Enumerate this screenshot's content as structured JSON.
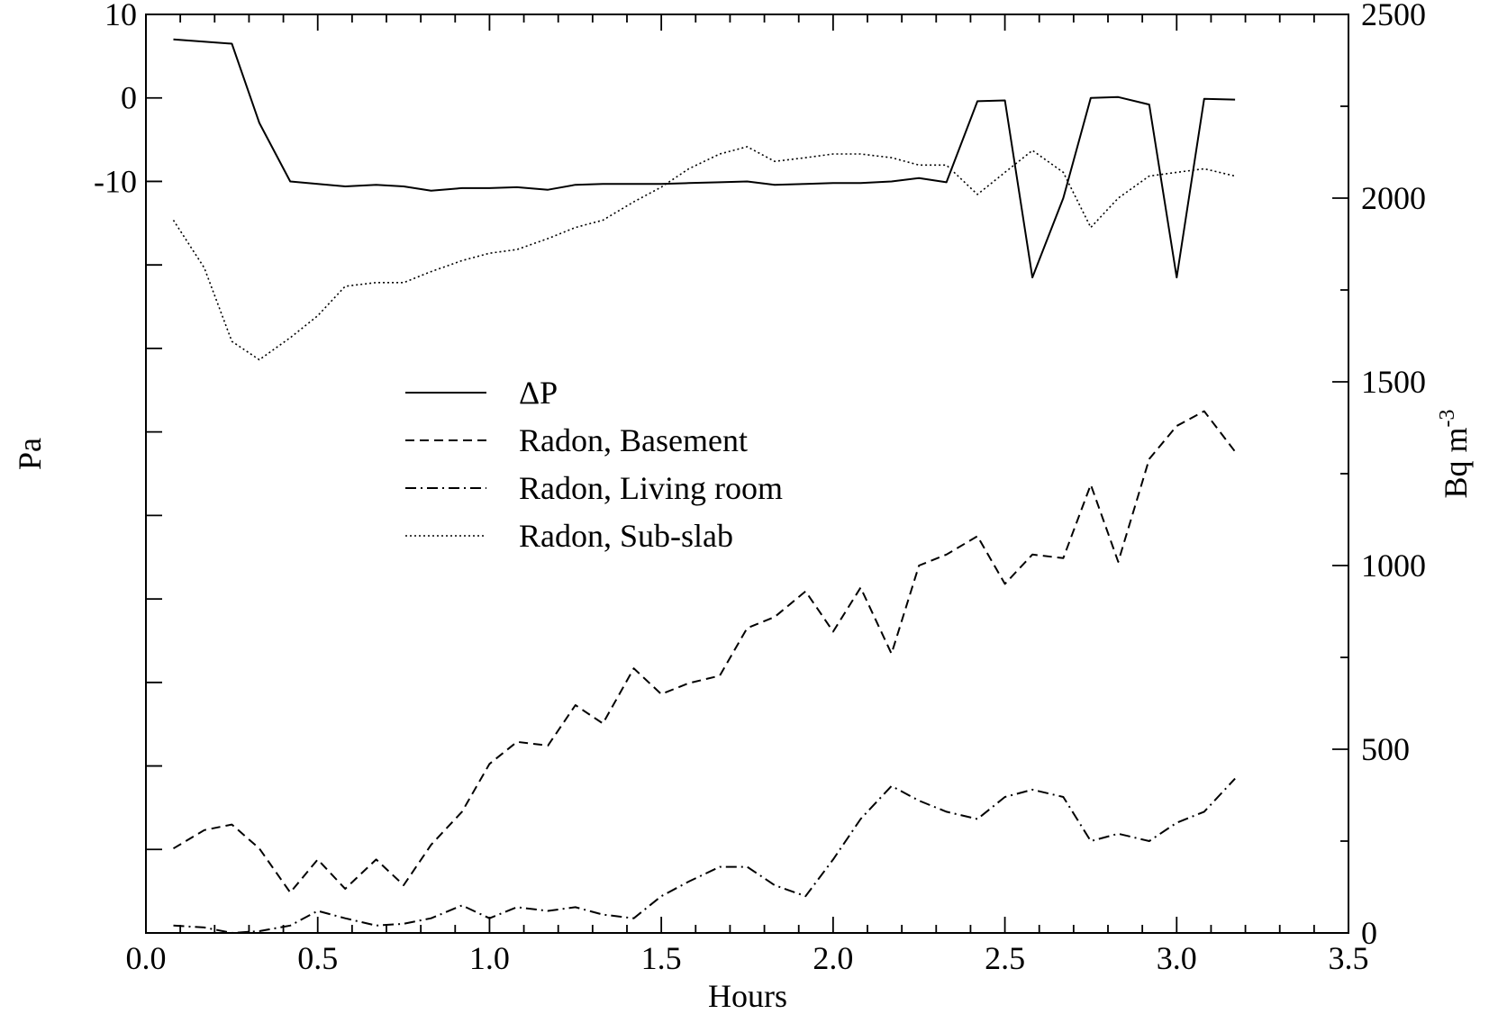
{
  "chart_data": {
    "type": "line",
    "title": "",
    "xlabel": "Hours",
    "ylabel_left": "Pa",
    "ylabel_right": "Bq m",
    "ylabel_right_exponent": "-3",
    "xlim": [
      0.0,
      3.5
    ],
    "ylim_left": [
      -100,
      10
    ],
    "ylim_right": [
      0,
      2500
    ],
    "x_ticks": [
      "0.0",
      "0.5",
      "1.0",
      "1.5",
      "2.0",
      "2.5",
      "3.0",
      "3.5"
    ],
    "y_left_ticks": [
      "10",
      "0",
      "-10"
    ],
    "y_right_ticks": [
      "0",
      "500",
      "1000",
      "1500",
      "2000",
      "2500"
    ],
    "legend_position": "center-left",
    "grid": false,
    "series": [
      {
        "name": "ΔP",
        "axis": "left",
        "style": "solid",
        "x": [
          0.08,
          0.25,
          0.33,
          0.42,
          0.5,
          0.58,
          0.67,
          0.75,
          0.83,
          0.92,
          1.0,
          1.08,
          1.17,
          1.25,
          1.33,
          1.42,
          1.5,
          1.58,
          1.67,
          1.75,
          1.83,
          1.92,
          2.0,
          2.08,
          2.17,
          2.25,
          2.33,
          2.42,
          2.5,
          2.58,
          2.67,
          2.75,
          2.83,
          2.92,
          3.0,
          3.08,
          3.17
        ],
        "values": [
          7,
          6.5,
          -3,
          -10,
          -10.3,
          -10.6,
          -10.4,
          -10.6,
          -11.1,
          -10.8,
          -10.8,
          -10.7,
          -11,
          -10.4,
          -10.3,
          -10.3,
          -10.3,
          -10.2,
          -10.1,
          -10,
          -10.4,
          -10.3,
          -10.2,
          -10.2,
          -10,
          -9.6,
          -10.1,
          -0.4,
          -0.3,
          -21.5,
          -12,
          0,
          0.1,
          -0.8,
          -21.5,
          -0.1,
          -0.2
        ]
      },
      {
        "name": "Radon, Basement",
        "axis": "right",
        "style": "dashed",
        "x": [
          0.08,
          0.17,
          0.25,
          0.33,
          0.42,
          0.5,
          0.58,
          0.67,
          0.75,
          0.83,
          0.92,
          1.0,
          1.08,
          1.17,
          1.25,
          1.33,
          1.42,
          1.5,
          1.58,
          1.67,
          1.75,
          1.83,
          1.92,
          2.0,
          2.08,
          2.17,
          2.25,
          2.33,
          2.42,
          2.5,
          2.58,
          2.67,
          2.75,
          2.83,
          2.92,
          3.0,
          3.08,
          3.17
        ],
        "values": [
          230,
          280,
          295,
          230,
          110,
          200,
          120,
          200,
          130,
          240,
          330,
          460,
          520,
          510,
          620,
          570,
          720,
          650,
          680,
          700,
          830,
          860,
          930,
          820,
          940,
          760,
          1000,
          1030,
          1080,
          950,
          1030,
          1020,
          1220,
          1010,
          1290,
          1380,
          1420,
          1310
        ]
      },
      {
        "name": "Radon, Living room",
        "axis": "right",
        "style": "dashdot",
        "x": [
          0.08,
          0.17,
          0.25,
          0.33,
          0.42,
          0.5,
          0.58,
          0.67,
          0.75,
          0.83,
          0.92,
          1.0,
          1.08,
          1.17,
          1.25,
          1.33,
          1.42,
          1.5,
          1.58,
          1.67,
          1.75,
          1.83,
          1.92,
          2.0,
          2.08,
          2.17,
          2.25,
          2.33,
          2.42,
          2.5,
          2.58,
          2.67,
          2.75,
          2.83,
          2.92,
          3.0,
          3.08,
          3.17
        ],
        "values": [
          20,
          15,
          0,
          5,
          20,
          60,
          40,
          20,
          25,
          40,
          75,
          40,
          70,
          60,
          70,
          50,
          40,
          100,
          140,
          180,
          180,
          130,
          100,
          200,
          310,
          400,
          360,
          330,
          310,
          370,
          390,
          370,
          250,
          270,
          250,
          300,
          330,
          420
        ]
      },
      {
        "name": "Radon, Sub-slab",
        "axis": "right",
        "style": "dotted",
        "x": [
          0.08,
          0.17,
          0.25,
          0.33,
          0.42,
          0.5,
          0.58,
          0.67,
          0.75,
          0.83,
          0.92,
          1.0,
          1.08,
          1.17,
          1.25,
          1.33,
          1.42,
          1.5,
          1.58,
          1.67,
          1.75,
          1.83,
          1.92,
          2.0,
          2.08,
          2.17,
          2.25,
          2.33,
          2.42,
          2.5,
          2.58,
          2.67,
          2.75,
          2.83,
          2.92,
          3.0,
          3.08,
          3.17
        ],
        "values": [
          1940,
          1810,
          1610,
          1560,
          1620,
          1680,
          1760,
          1770,
          1770,
          1800,
          1830,
          1850,
          1860,
          1890,
          1920,
          1940,
          1990,
          2030,
          2080,
          2120,
          2140,
          2100,
          2110,
          2120,
          2120,
          2110,
          2090,
          2090,
          2010,
          2070,
          2130,
          2070,
          1920,
          2000,
          2060,
          2070,
          2080,
          2060
        ]
      }
    ]
  }
}
